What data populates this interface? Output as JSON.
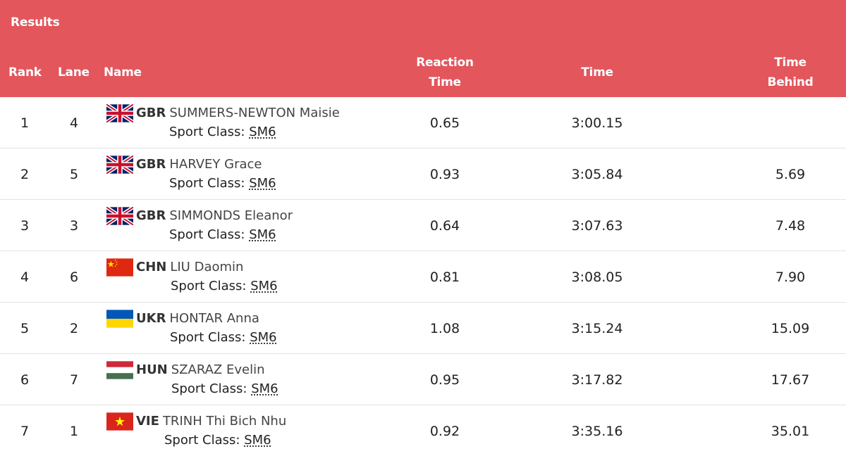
{
  "panel": {
    "title": "Results",
    "header_color": "#e2565c",
    "columns": {
      "rank": "Rank",
      "lane": "Lane",
      "name": "Name",
      "reaction_line1": "Reaction",
      "reaction_line2": "Time",
      "time": "Time",
      "behind_line1": "Time",
      "behind_line2": "Behind"
    }
  },
  "results": [
    {
      "rank": "1",
      "lane": "4",
      "flag": "gbr-flag-icon",
      "noc": "GBR",
      "athlete": "SUMMERS-NEWTON Maisie",
      "sport_label": "Sport Class: ",
      "sport_class": "SM6",
      "reaction": "0.65",
      "time": "3:00.15",
      "behind": ""
    },
    {
      "rank": "2",
      "lane": "5",
      "flag": "gbr-flag-icon",
      "noc": "GBR",
      "athlete": "HARVEY Grace",
      "sport_label": "Sport Class: ",
      "sport_class": "SM6",
      "reaction": "0.93",
      "time": "3:05.84",
      "behind": "5.69"
    },
    {
      "rank": "3",
      "lane": "3",
      "flag": "gbr-flag-icon",
      "noc": "GBR",
      "athlete": "SIMMONDS Eleanor",
      "sport_label": "Sport Class: ",
      "sport_class": "SM6",
      "reaction": "0.64",
      "time": "3:07.63",
      "behind": "7.48"
    },
    {
      "rank": "4",
      "lane": "6",
      "flag": "chn-flag-icon",
      "noc": "CHN",
      "athlete": "LIU Daomin",
      "sport_label": "Sport Class: ",
      "sport_class": "SM6",
      "reaction": "0.81",
      "time": "3:08.05",
      "behind": "7.90"
    },
    {
      "rank": "5",
      "lane": "2",
      "flag": "ukr-flag-icon",
      "noc": "UKR",
      "athlete": "HONTAR Anna",
      "sport_label": "Sport Class: ",
      "sport_class": "SM6",
      "reaction": "1.08",
      "time": "3:15.24",
      "behind": "15.09"
    },
    {
      "rank": "6",
      "lane": "7",
      "flag": "hun-flag-icon",
      "noc": "HUN",
      "athlete": "SZARAZ Evelin",
      "sport_label": "Sport Class: ",
      "sport_class": "SM6",
      "reaction": "0.95",
      "time": "3:17.82",
      "behind": "17.67"
    },
    {
      "rank": "7",
      "lane": "1",
      "flag": "vie-flag-icon",
      "noc": "VIE",
      "athlete": "TRINH Thi Bich Nhu",
      "sport_label": "Sport Class: ",
      "sport_class": "SM6",
      "reaction": "0.92",
      "time": "3:35.16",
      "behind": "35.01"
    }
  ]
}
